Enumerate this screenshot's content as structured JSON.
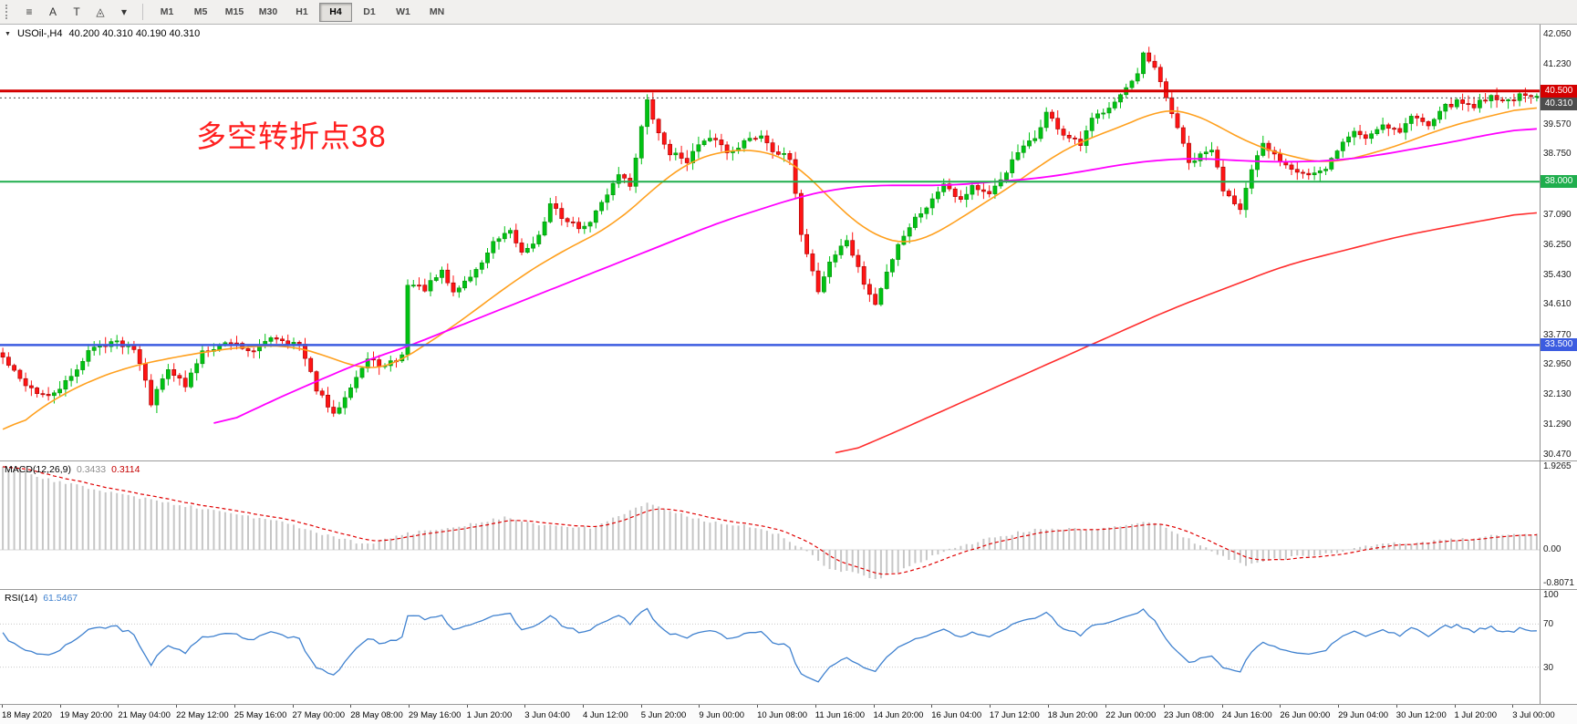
{
  "toolbar": {
    "tools": [
      {
        "id": "line-studies",
        "glyph": "≡"
      },
      {
        "id": "text-label",
        "glyph": "A"
      },
      {
        "id": "text-box",
        "glyph": "T"
      },
      {
        "id": "shapes",
        "glyph": "◬"
      },
      {
        "id": "shapes-dropdown",
        "glyph": "▾"
      }
    ],
    "timeframes": [
      "M1",
      "M5",
      "M15",
      "M30",
      "H1",
      "H4",
      "D1",
      "W1",
      "MN"
    ],
    "active_timeframe": "H4"
  },
  "chart": {
    "title": "USOil-,H4",
    "ohlc": "40.200 40.310 40.190 40.310",
    "annotation": "多空转折点38",
    "annotation_color": "#ff2020",
    "price_axis": [
      "42.050",
      "41.230",
      "40.410",
      "39.570",
      "38.750",
      "37.930",
      "37.090",
      "36.250",
      "35.430",
      "34.610",
      "33.770",
      "32.950",
      "32.130",
      "31.290",
      "30.470"
    ],
    "levels": [
      {
        "name": "resistance-line",
        "price": 40.5,
        "label": "40.500",
        "color": "#d40000",
        "width": 3,
        "style": "solid"
      },
      {
        "name": "bid-line",
        "price": 40.31,
        "label": "40.310",
        "color": "#4d4d4d",
        "width": 1,
        "style": "dashed"
      },
      {
        "name": "pivot-line",
        "price": 38.0,
        "label": "38.000",
        "color": "#1fae4d",
        "width": 2,
        "style": "solid"
      },
      {
        "name": "support-line",
        "price": 33.5,
        "label": "33.500",
        "color": "#3c5ce0",
        "width": 2.5,
        "style": "solid"
      }
    ]
  },
  "macd": {
    "name": "MACD(12,26,9)",
    "main_value": "0.3433",
    "signal_value": "0.3114",
    "axis": [
      "1.9265",
      "0.00",
      "-0.8071"
    ]
  },
  "rsi": {
    "name": "RSI(14)",
    "value": "61.5467",
    "axis": [
      "100",
      "70",
      "30"
    ]
  },
  "time_axis": [
    "18 May 2020",
    "19 May 20:00",
    "21 May 04:00",
    "22 May 12:00",
    "25 May 16:00",
    "27 May 00:00",
    "28 May 08:00",
    "29 May 16:00",
    "1 Jun 20:00",
    "3 Jun 04:00",
    "4 Jun 12:00",
    "5 Jun 20:00",
    "9 Jun 00:00",
    "10 Jun 08:00",
    "11 Jun 16:00",
    "14 Jun 20:00",
    "16 Jun 04:00",
    "17 Jun 12:00",
    "18 Jun 20:00",
    "22 Jun 00:00",
    "23 Jun 08:00",
    "24 Jun 16:00",
    "26 Jun 00:00",
    "29 Jun 04:00",
    "30 Jun 12:00",
    "1 Jul 20:00",
    "3 Jul 00:00"
  ],
  "chart_data": {
    "type": "candlestick",
    "symbol": "USOil-",
    "timeframe": "H4",
    "ohlc_current": {
      "open": 40.2,
      "high": 40.31,
      "low": 40.19,
      "close": 40.31
    },
    "price_range": [
      30.32,
      42.33
    ],
    "candles_count": 270,
    "up_color": "#00c214",
    "down_color": "#ff1414",
    "close_anchors": [
      [
        0,
        33.15
      ],
      [
        3,
        32.55
      ],
      [
        6,
        32.2
      ],
      [
        8,
        32.05
      ],
      [
        12,
        32.6
      ],
      [
        15,
        33.35
      ],
      [
        19,
        33.6
      ],
      [
        23,
        33.45
      ],
      [
        25,
        32.6
      ],
      [
        26,
        31.9
      ],
      [
        29,
        32.9
      ],
      [
        32,
        32.35
      ],
      [
        35,
        33.35
      ],
      [
        40,
        33.6
      ],
      [
        44,
        33.3
      ],
      [
        47,
        33.75
      ],
      [
        52,
        33.5
      ],
      [
        55,
        32.3
      ],
      [
        58,
        31.55
      ],
      [
        61,
        32.4
      ],
      [
        64,
        33.1
      ],
      [
        67,
        32.9
      ],
      [
        70,
        33.2
      ],
      [
        71,
        35.2
      ],
      [
        74,
        35.05
      ],
      [
        77,
        35.5
      ],
      [
        79,
        34.95
      ],
      [
        83,
        35.55
      ],
      [
        86,
        36.3
      ],
      [
        89,
        36.6
      ],
      [
        91,
        36.05
      ],
      [
        94,
        36.5
      ],
      [
        96,
        37.35
      ],
      [
        99,
        36.9
      ],
      [
        102,
        36.7
      ],
      [
        105,
        37.4
      ],
      [
        108,
        38.25
      ],
      [
        110,
        37.9
      ],
      [
        112,
        39.5
      ],
      [
        113,
        40.2
      ],
      [
        115,
        39.3
      ],
      [
        117,
        38.8
      ],
      [
        120,
        38.6
      ],
      [
        122,
        39.0
      ],
      [
        125,
        39.2
      ],
      [
        127,
        38.8
      ],
      [
        130,
        39.1
      ],
      [
        133,
        39.3
      ],
      [
        135,
        38.9
      ],
      [
        138,
        38.6
      ],
      [
        140,
        36.6
      ],
      [
        143,
        35.0
      ],
      [
        145,
        35.8
      ],
      [
        148,
        36.4
      ],
      [
        151,
        35.2
      ],
      [
        153,
        34.6
      ],
      [
        155,
        35.5
      ],
      [
        157,
        36.3
      ],
      [
        160,
        37.0
      ],
      [
        163,
        37.5
      ],
      [
        165,
        38.0
      ],
      [
        168,
        37.5
      ],
      [
        170,
        37.9
      ],
      [
        173,
        37.6
      ],
      [
        176,
        38.3
      ],
      [
        178,
        38.8
      ],
      [
        181,
        39.2
      ],
      [
        183,
        39.9
      ],
      [
        186,
        39.3
      ],
      [
        189,
        39.0
      ],
      [
        191,
        39.7
      ],
      [
        194,
        40.1
      ],
      [
        196,
        40.4
      ],
      [
        199,
        40.9
      ],
      [
        200,
        41.5
      ],
      [
        202,
        41.1
      ],
      [
        204,
        40.3
      ],
      [
        206,
        39.5
      ],
      [
        208,
        38.5
      ],
      [
        212,
        38.9
      ],
      [
        214,
        37.8
      ],
      [
        217,
        37.3
      ],
      [
        219,
        38.3
      ],
      [
        221,
        39.0
      ],
      [
        224,
        38.6
      ],
      [
        226,
        38.4
      ],
      [
        229,
        38.2
      ],
      [
        232,
        38.3
      ],
      [
        234,
        38.9
      ],
      [
        237,
        39.4
      ],
      [
        239,
        39.2
      ],
      [
        242,
        39.6
      ],
      [
        245,
        39.4
      ],
      [
        247,
        39.8
      ],
      [
        250,
        39.6
      ],
      [
        252,
        40.0
      ],
      [
        255,
        40.2
      ],
      [
        258,
        40.1
      ],
      [
        261,
        40.4
      ],
      [
        263,
        40.2
      ],
      [
        266,
        40.35
      ],
      [
        269,
        40.31
      ]
    ],
    "ma_fast_color": "#ffa01e",
    "ma_fast_anchors": [
      [
        0,
        30.9
      ],
      [
        5,
        31.6
      ],
      [
        10,
        32.1
      ],
      [
        15,
        32.5
      ],
      [
        22,
        32.9
      ],
      [
        28,
        33.1
      ],
      [
        35,
        33.3
      ],
      [
        42,
        33.45
      ],
      [
        50,
        33.5
      ],
      [
        55,
        33.3
      ],
      [
        60,
        33.0
      ],
      [
        64,
        32.8
      ],
      [
        68,
        32.9
      ],
      [
        72,
        33.3
      ],
      [
        78,
        33.9
      ],
      [
        84,
        34.6
      ],
      [
        90,
        35.3
      ],
      [
        96,
        35.9
      ],
      [
        102,
        36.4
      ],
      [
        107,
        36.8
      ],
      [
        112,
        37.5
      ],
      [
        117,
        38.2
      ],
      [
        121,
        38.6
      ],
      [
        126,
        38.85
      ],
      [
        131,
        38.9
      ],
      [
        135,
        38.8
      ],
      [
        139,
        38.5
      ],
      [
        143,
        37.9
      ],
      [
        147,
        37.2
      ],
      [
        152,
        36.6
      ],
      [
        156,
        36.3
      ],
      [
        160,
        36.3
      ],
      [
        164,
        36.6
      ],
      [
        169,
        37.1
      ],
      [
        174,
        37.6
      ],
      [
        179,
        38.1
      ],
      [
        184,
        38.7
      ],
      [
        189,
        39.1
      ],
      [
        194,
        39.4
      ],
      [
        199,
        39.7
      ],
      [
        203,
        40.0
      ],
      [
        207,
        40.0
      ],
      [
        211,
        39.7
      ],
      [
        215,
        39.4
      ],
      [
        219,
        39.0
      ],
      [
        224,
        38.8
      ],
      [
        228,
        38.6
      ],
      [
        233,
        38.5
      ],
      [
        238,
        38.7
      ],
      [
        243,
        38.9
      ],
      [
        248,
        39.2
      ],
      [
        253,
        39.5
      ],
      [
        258,
        39.7
      ],
      [
        263,
        39.9
      ],
      [
        269,
        40.1
      ]
    ],
    "ma_mid_color": "#ff00ff",
    "ma_mid_anchors": [
      [
        37,
        31.2
      ],
      [
        45,
        31.8
      ],
      [
        52,
        32.3
      ],
      [
        58,
        32.7
      ],
      [
        64,
        33.1
      ],
      [
        70,
        33.4
      ],
      [
        78,
        33.9
      ],
      [
        86,
        34.4
      ],
      [
        94,
        34.9
      ],
      [
        102,
        35.4
      ],
      [
        110,
        35.9
      ],
      [
        118,
        36.4
      ],
      [
        126,
        36.9
      ],
      [
        134,
        37.3
      ],
      [
        140,
        37.6
      ],
      [
        146,
        37.8
      ],
      [
        152,
        37.9
      ],
      [
        158,
        37.9
      ],
      [
        166,
        37.9
      ],
      [
        174,
        38.0
      ],
      [
        182,
        38.1
      ],
      [
        190,
        38.3
      ],
      [
        197,
        38.5
      ],
      [
        203,
        38.6
      ],
      [
        209,
        38.65
      ],
      [
        215,
        38.6
      ],
      [
        221,
        38.55
      ],
      [
        228,
        38.55
      ],
      [
        235,
        38.6
      ],
      [
        242,
        38.75
      ],
      [
        249,
        38.95
      ],
      [
        256,
        39.15
      ],
      [
        262,
        39.35
      ],
      [
        269,
        39.5
      ]
    ],
    "ma_slow_color": "#ff2d2d",
    "ma_slow_anchors": [
      [
        146,
        30.4
      ],
      [
        155,
        31.0
      ],
      [
        165,
        31.7
      ],
      [
        175,
        32.4
      ],
      [
        185,
        33.1
      ],
      [
        195,
        33.8
      ],
      [
        205,
        34.5
      ],
      [
        215,
        35.1
      ],
      [
        225,
        35.7
      ],
      [
        235,
        36.1
      ],
      [
        245,
        36.5
      ],
      [
        255,
        36.8
      ],
      [
        262,
        37.0
      ],
      [
        269,
        37.2
      ]
    ],
    "macd_hist_color": "#c6c6c6",
    "macd_signal_color": "#e00000",
    "macd_anchors": [
      [
        0,
        1.92
      ],
      [
        10,
        1.55
      ],
      [
        20,
        1.3
      ],
      [
        30,
        1.05
      ],
      [
        40,
        0.85
      ],
      [
        50,
        0.6
      ],
      [
        58,
        0.28
      ],
      [
        64,
        0.12
      ],
      [
        70,
        0.35
      ],
      [
        80,
        0.55
      ],
      [
        88,
        0.75
      ],
      [
        95,
        0.55
      ],
      [
        103,
        0.5
      ],
      [
        110,
        0.9
      ],
      [
        113,
        1.05
      ],
      [
        118,
        0.85
      ],
      [
        124,
        0.65
      ],
      [
        130,
        0.55
      ],
      [
        136,
        0.35
      ],
      [
        140,
        0.05
      ],
      [
        145,
        -0.45
      ],
      [
        150,
        -0.55
      ],
      [
        153,
        -0.7
      ],
      [
        158,
        -0.45
      ],
      [
        163,
        -0.15
      ],
      [
        168,
        0.1
      ],
      [
        173,
        0.25
      ],
      [
        178,
        0.4
      ],
      [
        184,
        0.5
      ],
      [
        190,
        0.45
      ],
      [
        196,
        0.55
      ],
      [
        201,
        0.65
      ],
      [
        205,
        0.45
      ],
      [
        210,
        0.1
      ],
      [
        215,
        -0.2
      ],
      [
        218,
        -0.35
      ],
      [
        222,
        -0.25
      ],
      [
        227,
        -0.15
      ],
      [
        232,
        -0.1
      ],
      [
        238,
        0.05
      ],
      [
        244,
        0.15
      ],
      [
        250,
        0.18
      ],
      [
        256,
        0.25
      ],
      [
        262,
        0.32
      ],
      [
        269,
        0.3433
      ]
    ],
    "rsi_color": "#3f81cf",
    "rsi_levels": [
      70,
      30
    ]
  }
}
